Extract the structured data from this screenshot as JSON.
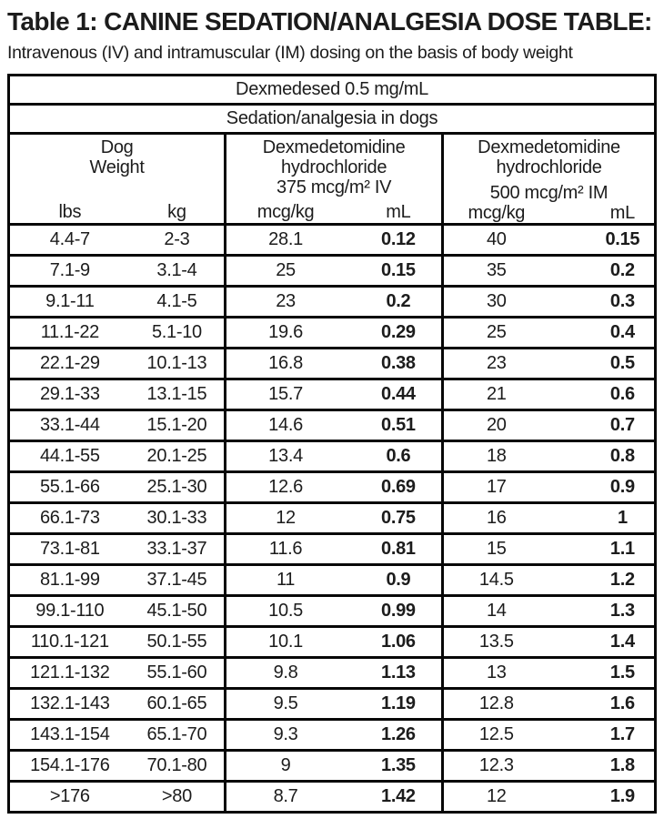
{
  "title": "Table 1: CANINE SEDATION/ANALGESIA DOSE TABLE:",
  "subtitle": "Intravenous (IV) and intramuscular (IM) dosing on the basis of body weight",
  "table": {
    "header1": "Dexmedesed 0.5 mg/mL",
    "header2": "Sedation/analgesia in dogs",
    "groups": [
      {
        "title_lines": [
          "Dog",
          "Weight"
        ],
        "col1": "lbs",
        "col2": "kg"
      },
      {
        "title_lines": [
          "Dexmedetomidine",
          "hydrochloride",
          "375 mcg/m² IV"
        ],
        "col1": "mcg/kg",
        "col2": "mL"
      },
      {
        "title_lines": [
          "Dexmedetomidine",
          "hydrochloride",
          "500 mcg/m² IM"
        ],
        "col1": "mcg/kg",
        "col2": "mL"
      }
    ],
    "rows": [
      [
        "4.4-7",
        "2-3",
        "28.1",
        "0.12",
        "40",
        "0.15"
      ],
      [
        "7.1-9",
        "3.1-4",
        "25",
        "0.15",
        "35",
        "0.2"
      ],
      [
        "9.1-11",
        "4.1-5",
        "23",
        "0.2",
        "30",
        "0.3"
      ],
      [
        "11.1-22",
        "5.1-10",
        "19.6",
        "0.29",
        "25",
        "0.4"
      ],
      [
        "22.1-29",
        "10.1-13",
        "16.8",
        "0.38",
        "23",
        "0.5"
      ],
      [
        "29.1-33",
        "13.1-15",
        "15.7",
        "0.44",
        "21",
        "0.6"
      ],
      [
        "33.1-44",
        "15.1-20",
        "14.6",
        "0.51",
        "20",
        "0.7"
      ],
      [
        "44.1-55",
        "20.1-25",
        "13.4",
        "0.6",
        "18",
        "0.8"
      ],
      [
        "55.1-66",
        "25.1-30",
        "12.6",
        "0.69",
        "17",
        "0.9"
      ],
      [
        "66.1-73",
        "30.1-33",
        "12",
        "0.75",
        "16",
        "1"
      ],
      [
        "73.1-81",
        "33.1-37",
        "11.6",
        "0.81",
        "15",
        "1.1"
      ],
      [
        "81.1-99",
        "37.1-45",
        "11",
        "0.9",
        "14.5",
        "1.2"
      ],
      [
        "99.1-110",
        "45.1-50",
        "10.5",
        "0.99",
        "14",
        "1.3"
      ],
      [
        "110.1-121",
        "50.1-55",
        "10.1",
        "1.06",
        "13.5",
        "1.4"
      ],
      [
        "121.1-132",
        "55.1-60",
        "9.8",
        "1.13",
        "13",
        "1.5"
      ],
      [
        "132.1-143",
        "60.1-65",
        "9.5",
        "1.19",
        "12.8",
        "1.6"
      ],
      [
        "143.1-154",
        "65.1-70",
        "9.3",
        "1.26",
        "12.5",
        "1.7"
      ],
      [
        "154.1-176",
        "70.1-80",
        "9",
        "1.35",
        "12.3",
        "1.8"
      ],
      [
        ">176",
        ">80",
        "8.7",
        "1.42",
        "12",
        "1.9"
      ]
    ]
  }
}
